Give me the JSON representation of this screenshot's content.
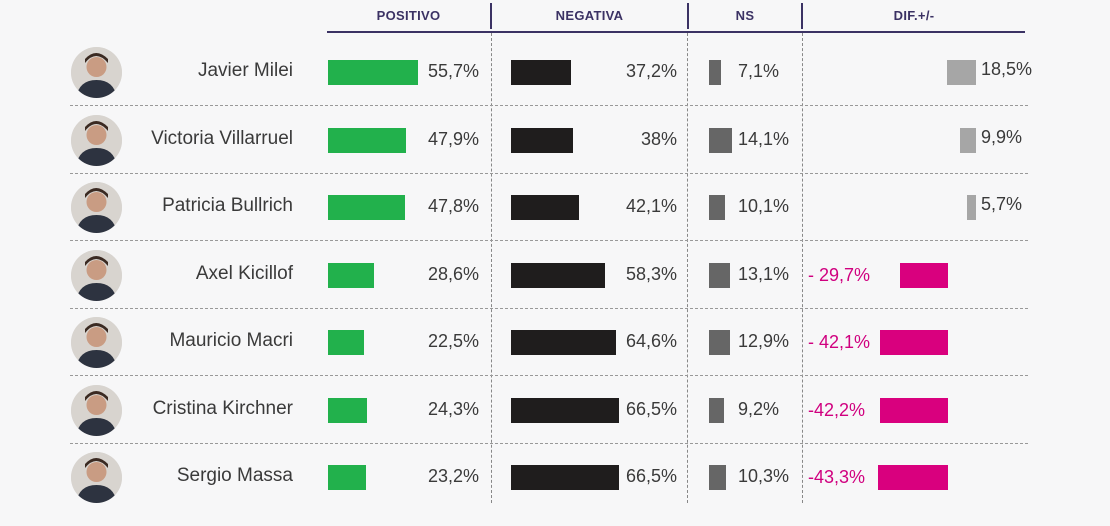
{
  "headers": {
    "positivo": "POSITIVO",
    "negativa": "NEGATIVA",
    "ns": "NS",
    "dif": "DIF.+/-"
  },
  "colors": {
    "positivo": "#22b14c",
    "negativa": "#1f1d1d",
    "ns": "#666666",
    "dif_pos": "#a6a6a6",
    "dif_neg": "#d9007e",
    "neg_text": "#d0007f"
  },
  "chart_data": {
    "type": "table",
    "title": "",
    "columns": [
      "POSITIVO",
      "NEGATIVA",
      "NS",
      "DIF.+/-"
    ],
    "rows": [
      {
        "name": "Javier Milei",
        "positivo": 55.7,
        "negativa": 37.2,
        "ns": 7.1,
        "dif": 18.5,
        "labels": {
          "positivo": "55,7%",
          "negativa": "37,2%",
          "ns": "7,1%",
          "dif": "18,5%"
        }
      },
      {
        "name": "Victoria Villarruel",
        "positivo": 47.9,
        "negativa": 38,
        "ns": 14.1,
        "dif": 9.9,
        "labels": {
          "positivo": "47,9%",
          "negativa": "38%",
          "ns": "14,1%",
          "dif": "9,9%"
        }
      },
      {
        "name": "Patricia Bullrich",
        "positivo": 47.8,
        "negativa": 42.1,
        "ns": 10.1,
        "dif": 5.7,
        "labels": {
          "positivo": "47,8%",
          "negativa": "42,1%",
          "ns": "10,1%",
          "dif": "5,7%"
        }
      },
      {
        "name": "Axel Kicillof",
        "positivo": 28.6,
        "negativa": 58.3,
        "ns": 13.1,
        "dif": -29.7,
        "labels": {
          "positivo": "28,6%",
          "negativa": "58,3%",
          "ns": "13,1%",
          "dif": "- 29,7%"
        }
      },
      {
        "name": "Mauricio Macri",
        "positivo": 22.5,
        "negativa": 64.6,
        "ns": 12.9,
        "dif": -42.1,
        "labels": {
          "positivo": "22,5%",
          "negativa": "64,6%",
          "ns": "12,9%",
          "dif": "- 42,1%"
        }
      },
      {
        "name": "Cristina Kirchner",
        "positivo": 24.3,
        "negativa": 66.5,
        "ns": 9.2,
        "dif": -42.2,
        "labels": {
          "positivo": "24,3%",
          "negativa": "66,5%",
          "ns": "9,2%",
          "dif": "-42,2%"
        }
      },
      {
        "name": "Sergio Massa",
        "positivo": 23.2,
        "negativa": 66.5,
        "ns": 10.3,
        "dif": -43.3,
        "labels": {
          "positivo": "23,2%",
          "negativa": "66,5%",
          "ns": "10,3%",
          "dif": "-43,3%"
        }
      }
    ]
  }
}
